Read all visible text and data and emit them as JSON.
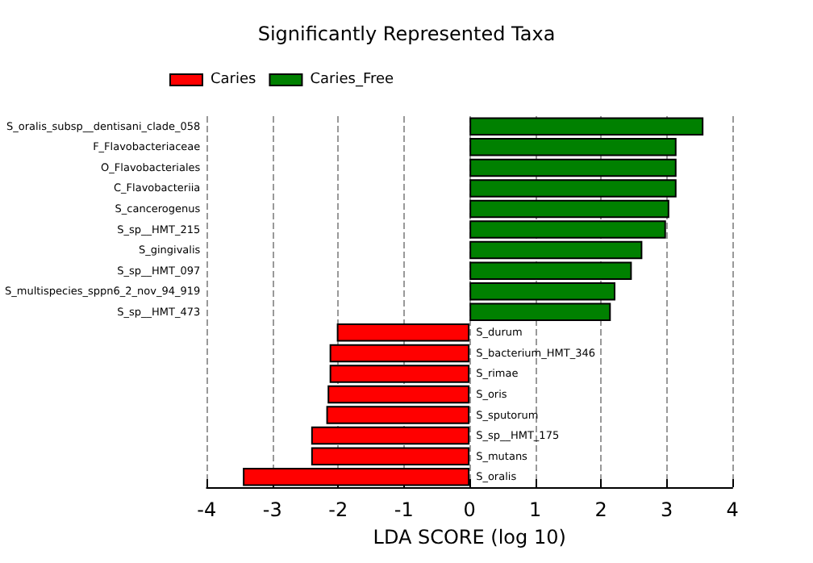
{
  "chart_data": {
    "type": "bar",
    "orientation": "horizontal",
    "title": "Significantly Represented Taxa",
    "xlabel": "LDA SCORE (log 10)",
    "categories": [
      "S_oralis_subsp__dentisani_clade_058",
      "F_Flavobacteriaceae",
      "O_Flavobacteriales",
      "C_Flavobacteriia",
      "S_cancerogenus",
      "S_sp__HMT_215",
      "S_gingivalis",
      "S_sp__HMT_097",
      "S_multispecies_sppn6_2_nov_94_919",
      "S_sp__HMT_473",
      "S_durum",
      "S_bacterium_HMT_346",
      "S_rimae",
      "S_oris",
      "S_sputorum",
      "S_sp__HMT_175",
      "S_mutans",
      "S_oralis"
    ],
    "series": [
      {
        "name": "Caries",
        "color": "#ff0000",
        "values": [
          null,
          null,
          null,
          null,
          null,
          null,
          null,
          null,
          null,
          null,
          -2.02,
          -2.13,
          -2.13,
          -2.16,
          -2.18,
          -2.41,
          -2.41,
          -3.45
        ]
      },
      {
        "name": "Caries_Free",
        "color": "#008000",
        "values": [
          3.56,
          3.15,
          3.15,
          3.15,
          3.04,
          2.99,
          2.63,
          2.47,
          2.22,
          2.15,
          null,
          null,
          null,
          null,
          null,
          null,
          null,
          null
        ]
      }
    ],
    "xlim": [
      -4,
      4
    ],
    "xticks": [
      -4,
      -3,
      -2,
      -1,
      0,
      1,
      2,
      3,
      4
    ],
    "grid": "x",
    "legend": "top left"
  }
}
